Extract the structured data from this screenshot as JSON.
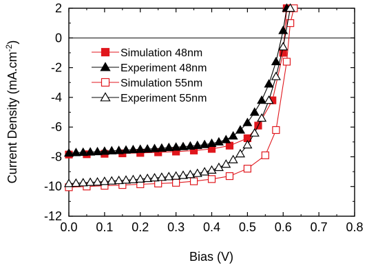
{
  "chart_data": {
    "type": "line",
    "xlabel": "Bias (V)",
    "ylabel_main": "Current Density (mA.cm",
    "ylabel_sup": "-2",
    "ylabel_close": ")",
    "xlim": [
      0.0,
      0.8
    ],
    "ylim": [
      -12,
      2
    ],
    "xticks": [
      "0.0",
      "0.1",
      "0.2",
      "0.3",
      "0.4",
      "0.5",
      "0.6",
      "0.7",
      "0.8"
    ],
    "yticks": [
      "2",
      "0",
      "-2",
      "-4",
      "-6",
      "-8",
      "-10",
      "-12"
    ],
    "zero_line": true,
    "legend_placement": "upper-left",
    "series": [
      {
        "name": "Simulation 48nm",
        "marker": "square",
        "filled": true,
        "color": "#e0161c",
        "x": [
          0.0,
          0.05,
          0.1,
          0.15,
          0.2,
          0.25,
          0.3,
          0.35,
          0.4,
          0.45,
          0.5,
          0.53,
          0.57,
          0.6,
          0.61
        ],
        "y": [
          -7.85,
          -7.83,
          -7.8,
          -7.77,
          -7.74,
          -7.7,
          -7.65,
          -7.58,
          -7.47,
          -7.25,
          -6.75,
          -5.9,
          -4.2,
          -1.0,
          2.0
        ]
      },
      {
        "name": "Experiment 48nm",
        "marker": "triangle",
        "filled": true,
        "color": "#000000",
        "x": [
          0.0,
          0.02,
          0.04,
          0.06,
          0.08,
          0.1,
          0.12,
          0.14,
          0.16,
          0.18,
          0.2,
          0.22,
          0.24,
          0.26,
          0.28,
          0.3,
          0.32,
          0.34,
          0.36,
          0.38,
          0.4,
          0.42,
          0.44,
          0.46,
          0.48,
          0.5,
          0.52,
          0.54,
          0.56,
          0.58,
          0.6,
          0.61
        ],
        "y": [
          -7.75,
          -7.72,
          -7.7,
          -7.68,
          -7.66,
          -7.63,
          -7.6,
          -7.58,
          -7.55,
          -7.52,
          -7.5,
          -7.48,
          -7.45,
          -7.42,
          -7.38,
          -7.35,
          -7.32,
          -7.28,
          -7.24,
          -7.18,
          -7.1,
          -7.0,
          -6.85,
          -6.6,
          -6.2,
          -5.7,
          -5.0,
          -4.2,
          -3.1,
          -1.6,
          0.5,
          2.0
        ]
      },
      {
        "name": "Simulation 55nm",
        "marker": "square",
        "filled": false,
        "color": "#e0161c",
        "x": [
          0.0,
          0.05,
          0.1,
          0.15,
          0.2,
          0.25,
          0.3,
          0.35,
          0.4,
          0.45,
          0.5,
          0.55,
          0.58,
          0.61,
          0.62,
          0.63
        ],
        "y": [
          -10.05,
          -10.0,
          -9.95,
          -9.9,
          -9.85,
          -9.8,
          -9.75,
          -9.65,
          -9.5,
          -9.3,
          -8.8,
          -7.9,
          -6.2,
          -1.6,
          1.0,
          2.0
        ]
      },
      {
        "name": "Experiment 55nm",
        "marker": "triangle",
        "filled": false,
        "color": "#000000",
        "x": [
          0.0,
          0.02,
          0.04,
          0.06,
          0.08,
          0.1,
          0.12,
          0.14,
          0.16,
          0.18,
          0.2,
          0.22,
          0.24,
          0.26,
          0.28,
          0.3,
          0.32,
          0.34,
          0.36,
          0.38,
          0.4,
          0.42,
          0.44,
          0.46,
          0.48,
          0.5,
          0.52,
          0.54,
          0.56,
          0.58,
          0.6,
          0.62
        ],
        "y": [
          -9.8,
          -9.78,
          -9.75,
          -9.72,
          -9.7,
          -9.66,
          -9.63,
          -9.6,
          -9.57,
          -9.54,
          -9.5,
          -9.46,
          -9.42,
          -9.38,
          -9.34,
          -9.3,
          -9.25,
          -9.2,
          -9.12,
          -9.02,
          -8.9,
          -8.72,
          -8.5,
          -8.2,
          -7.8,
          -7.2,
          -6.4,
          -5.4,
          -4.2,
          -2.6,
          -0.6,
          2.0
        ]
      }
    ]
  }
}
